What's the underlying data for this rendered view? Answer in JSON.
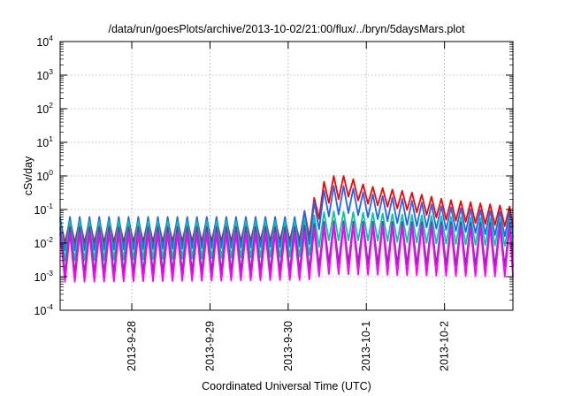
{
  "chart_data": {
    "type": "line",
    "title": "/data/run/goesPlots/archive/2013-10-02/21:00/flux/../bryn/5daysMars.plot",
    "xlabel": "Coordinated Universal Time (UTC)",
    "ylabel": "cSv/day",
    "yscale": "log",
    "ylim": [
      0.0001,
      10000
    ],
    "xlim": [
      "2013-09-27T02:00",
      "2013-10-02T21:00"
    ],
    "grid": true,
    "y_ticks": [
      {
        "base": "10",
        "exp": "-4"
      },
      {
        "base": "10",
        "exp": "-3"
      },
      {
        "base": "10",
        "exp": "-2"
      },
      {
        "base": "10",
        "exp": "-1"
      },
      {
        "base": "10",
        "exp": "0"
      },
      {
        "base": "10",
        "exp": "1"
      },
      {
        "base": "10",
        "exp": "2"
      },
      {
        "base": "10",
        "exp": "3"
      },
      {
        "base": "10",
        "exp": "4"
      }
    ],
    "x_ticks": [
      {
        "label": "2013-9-28",
        "t": "2013-09-28T00:00"
      },
      {
        "label": "2013-9-29",
        "t": "2013-09-29T00:00"
      },
      {
        "label": "2013-9-30",
        "t": "2013-09-30T00:00"
      },
      {
        "label": "2013-10-1",
        "t": "2013-10-01T00:00"
      },
      {
        "label": "2013-10-2",
        "t": "2013-10-02T00:00"
      }
    ],
    "cycle_hours": 3,
    "series": [
      {
        "color": "#ff0000",
        "peaks": [
          {
            "t": "2013-09-27T02:00",
            "v": 0.05
          },
          {
            "t": "2013-09-30T03:00",
            "v": 0.05
          },
          {
            "t": "2013-09-30T09:00",
            "v": 0.3
          },
          {
            "t": "2013-09-30T12:00",
            "v": 1.0
          },
          {
            "t": "2013-09-30T18:00",
            "v": 1.0
          },
          {
            "t": "2013-10-01T00:00",
            "v": 0.5
          },
          {
            "t": "2013-10-01T12:00",
            "v": 0.35
          },
          {
            "t": "2013-10-02T00:00",
            "v": 0.2
          },
          {
            "t": "2013-10-02T21:00",
            "v": 0.12
          }
        ],
        "troughs": [
          {
            "t": "2013-09-27T02:00",
            "v": 0.01
          },
          {
            "t": "2013-09-30T06:00",
            "v": 0.012
          },
          {
            "t": "2013-09-30T12:00",
            "v": 0.15
          },
          {
            "t": "2013-09-30T18:00",
            "v": 0.25
          },
          {
            "t": "2013-10-01T00:00",
            "v": 0.15
          },
          {
            "t": "2013-10-01T12:00",
            "v": 0.1
          },
          {
            "t": "2013-10-02T00:00",
            "v": 0.05
          },
          {
            "t": "2013-10-02T21:00",
            "v": 0.03
          }
        ]
      },
      {
        "color": "#1e64ff",
        "peaks": [
          {
            "t": "2013-09-27T02:00",
            "v": 0.06
          },
          {
            "t": "2013-09-30T03:00",
            "v": 0.06
          },
          {
            "t": "2013-09-30T09:00",
            "v": 0.2
          },
          {
            "t": "2013-09-30T12:00",
            "v": 0.5
          },
          {
            "t": "2013-09-30T18:00",
            "v": 0.5
          },
          {
            "t": "2013-10-01T00:00",
            "v": 0.3
          },
          {
            "t": "2013-10-01T12:00",
            "v": 0.2
          },
          {
            "t": "2013-10-02T00:00",
            "v": 0.12
          },
          {
            "t": "2013-10-02T21:00",
            "v": 0.08
          }
        ],
        "troughs": [
          {
            "t": "2013-09-27T02:00",
            "v": 0.006
          },
          {
            "t": "2013-09-30T06:00",
            "v": 0.008
          },
          {
            "t": "2013-09-30T12:00",
            "v": 0.06
          },
          {
            "t": "2013-09-30T18:00",
            "v": 0.08
          },
          {
            "t": "2013-10-01T00:00",
            "v": 0.06
          },
          {
            "t": "2013-10-01T12:00",
            "v": 0.035
          },
          {
            "t": "2013-10-02T00:00",
            "v": 0.025
          },
          {
            "t": "2013-10-02T21:00",
            "v": 0.015
          }
        ]
      },
      {
        "color": "#00c8a0",
        "peaks": [
          {
            "t": "2013-09-27T02:00",
            "v": 0.045
          },
          {
            "t": "2013-09-30T03:00",
            "v": 0.045
          },
          {
            "t": "2013-09-30T12:00",
            "v": 0.09
          },
          {
            "t": "2013-10-01T00:00",
            "v": 0.08
          },
          {
            "t": "2013-10-02T21:00",
            "v": 0.05
          }
        ],
        "troughs": [
          {
            "t": "2013-09-27T02:00",
            "v": 0.003
          },
          {
            "t": "2013-09-30T06:00",
            "v": 0.004
          },
          {
            "t": "2013-09-30T12:00",
            "v": 0.012
          },
          {
            "t": "2013-10-01T00:00",
            "v": 0.012
          },
          {
            "t": "2013-10-02T21:00",
            "v": 0.008
          }
        ]
      },
      {
        "color": "#6a3d9a",
        "peaks": [
          {
            "t": "2013-09-27T02:00",
            "v": 0.03
          },
          {
            "t": "2013-09-30T03:00",
            "v": 0.03
          },
          {
            "t": "2013-09-30T12:00",
            "v": 0.045
          },
          {
            "t": "2013-10-02T21:00",
            "v": 0.04
          }
        ],
        "troughs": [
          {
            "t": "2013-09-27T02:00",
            "v": 0.0012
          },
          {
            "t": "2013-09-30T06:00",
            "v": 0.0015
          },
          {
            "t": "2013-09-30T12:00",
            "v": 0.0025
          },
          {
            "t": "2013-10-02T21:00",
            "v": 0.002
          }
        ]
      },
      {
        "color": "#ff00ff",
        "peaks": [
          {
            "t": "2013-09-27T02:00",
            "v": 0.02
          },
          {
            "t": "2013-09-30T03:00",
            "v": 0.02
          },
          {
            "t": "2013-09-30T12:00",
            "v": 0.035
          },
          {
            "t": "2013-10-02T21:00",
            "v": 0.03
          }
        ],
        "troughs": [
          {
            "t": "2013-09-27T02:00",
            "v": 0.0007
          },
          {
            "t": "2013-09-30T06:00",
            "v": 0.0008
          },
          {
            "t": "2013-09-30T12:00",
            "v": 0.0012
          },
          {
            "t": "2013-10-02T21:00",
            "v": 0.001
          }
        ]
      }
    ]
  }
}
